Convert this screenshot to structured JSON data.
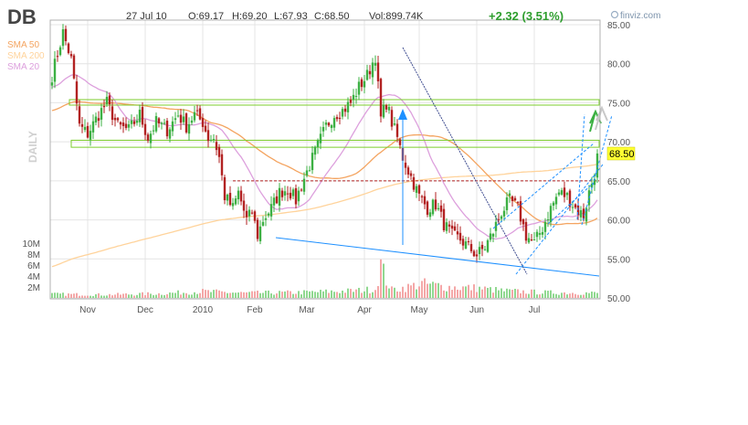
{
  "header": {
    "ticker": "DB",
    "date": "27 Jul 10",
    "open": "O:69.17",
    "high": "H:69.20",
    "low": "L:67.93",
    "close": "C:68.50",
    "volume": "Vol:899.74K",
    "change": "+2.32 (3.51%)",
    "brand": "finviz.com"
  },
  "legend": [
    {
      "label": "SMA 50",
      "color": "#f4a460"
    },
    {
      "label": "SMA 200",
      "color": "#ffd39b"
    },
    {
      "label": "SMA 20",
      "color": "#dda0dd"
    }
  ],
  "period_label": "DAILY",
  "last_price_label": "68.50",
  "colors": {
    "up": "#3cb043",
    "down": "#b22222",
    "vol_up": "#90d890",
    "vol_down": "#f4a7a7",
    "sma50": "#f4a460",
    "sma200": "#ffd39b",
    "sma20": "#dda0dd",
    "trend_blue": "#1e90ff",
    "trend_navy": "#3d4b8f",
    "support_band": "#7ccd2c",
    "dashed_red": "#b22222",
    "price_tag": "#ffff33"
  },
  "chart_data": {
    "type": "candlestick",
    "y_axis": {
      "range": [
        50,
        85
      ],
      "ticks": [
        50,
        55,
        60,
        65,
        70,
        75,
        80,
        85
      ],
      "tick_labels": [
        "50.00",
        "55.00",
        "60.00",
        "65.00",
        "70.00",
        "75.00",
        "80.00",
        "85.00"
      ]
    },
    "volume_axis": {
      "ticks": [
        "2M",
        "4M",
        "6M",
        "8M",
        "10M"
      ]
    },
    "x_labels": [
      "Nov",
      "Dec",
      "2010",
      "Feb",
      "Mar",
      "Apr",
      "May",
      "Jun",
      "Jul"
    ],
    "sessions": 200,
    "label_sessions": [
      13,
      34,
      55,
      74,
      93,
      114,
      134,
      155,
      176
    ],
    "anchors": [
      [
        0,
        78.5
      ],
      [
        4,
        84.0
      ],
      [
        7,
        80.5
      ],
      [
        10,
        72.0
      ],
      [
        13,
        71.0
      ],
      [
        17,
        73.5
      ],
      [
        20,
        75.0
      ],
      [
        24,
        72.0
      ],
      [
        28,
        71.5
      ],
      [
        32,
        73.5
      ],
      [
        35,
        70.5
      ],
      [
        38,
        72.5
      ],
      [
        42,
        71.5
      ],
      [
        46,
        73.5
      ],
      [
        49,
        72.0
      ],
      [
        52,
        73.5
      ],
      [
        55,
        72.5
      ],
      [
        57,
        70.5
      ],
      [
        59,
        70.5
      ],
      [
        61,
        68.0
      ],
      [
        63,
        63.0
      ],
      [
        66,
        61.5
      ],
      [
        68,
        63.5
      ],
      [
        71,
        60.0
      ],
      [
        73,
        61.0
      ],
      [
        75,
        58.0
      ],
      [
        77,
        60.0
      ],
      [
        80,
        61.5
      ],
      [
        83,
        63.5
      ],
      [
        86,
        64.0
      ],
      [
        89,
        62.5
      ],
      [
        91,
        64.5
      ],
      [
        94,
        67.0
      ],
      [
        97,
        69.5
      ],
      [
        100,
        72.0
      ],
      [
        103,
        73.5
      ],
      [
        106,
        74.0
      ],
      [
        109,
        75.0
      ],
      [
        112,
        77.0
      ],
      [
        115,
        78.5
      ],
      [
        118,
        81.0
      ],
      [
        120,
        73.0
      ],
      [
        122,
        75.0
      ],
      [
        124,
        72.5
      ],
      [
        126,
        70.5
      ],
      [
        128,
        68.0
      ],
      [
        131,
        65.5
      ],
      [
        134,
        63.0
      ],
      [
        137,
        61.5
      ],
      [
        140,
        62.0
      ],
      [
        143,
        59.5
      ],
      [
        146,
        58.0
      ],
      [
        149,
        57.5
      ],
      [
        152,
        56.5
      ],
      [
        155,
        55.5
      ],
      [
        158,
        56.5
      ],
      [
        161,
        58.5
      ],
      [
        164,
        61.0
      ],
      [
        167,
        62.5
      ],
      [
        170,
        61.5
      ],
      [
        173,
        58.0
      ],
      [
        176,
        57.0
      ],
      [
        179,
        59.0
      ],
      [
        182,
        61.5
      ],
      [
        185,
        63.5
      ],
      [
        188,
        63.0
      ],
      [
        191,
        61.5
      ],
      [
        194,
        60.5
      ],
      [
        196,
        63.5
      ],
      [
        198,
        66.0
      ],
      [
        199,
        68.5
      ]
    ],
    "volume_levels": [
      [
        0,
        0.7
      ],
      [
        20,
        0.6
      ],
      [
        40,
        0.8
      ],
      [
        55,
        1.2
      ],
      [
        70,
        0.9
      ],
      [
        90,
        1.0
      ],
      [
        110,
        1.3
      ],
      [
        118,
        1.6
      ],
      [
        120,
        6.0
      ],
      [
        122,
        3.2
      ],
      [
        124,
        1.5
      ],
      [
        130,
        2.0
      ],
      [
        135,
        2.6
      ],
      [
        140,
        2.3
      ],
      [
        145,
        2.0
      ],
      [
        155,
        1.8
      ],
      [
        165,
        1.3
      ],
      [
        180,
        1.0
      ],
      [
        199,
        0.9
      ]
    ]
  }
}
